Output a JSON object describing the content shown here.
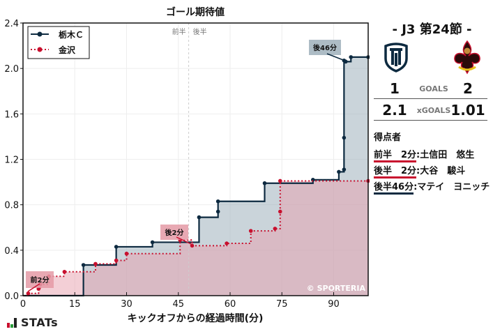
{
  "chart_data": {
    "type": "line",
    "title": "ゴール期待値",
    "xlabel": "キックオフからの経過時間(分)",
    "ylabel": "",
    "xlim": [
      0,
      100
    ],
    "ylim": [
      0,
      2.4
    ],
    "xticks": [
      0,
      15,
      30,
      45,
      60,
      75,
      90
    ],
    "yticks": [
      0.0,
      0.4,
      0.8,
      1.2,
      1.6,
      2.0,
      2.4
    ],
    "grid": true,
    "halftime_marker": {
      "x": 48,
      "labels": [
        "前半",
        "後半"
      ]
    },
    "legend_position": "upper left",
    "series": [
      {
        "name": "栃木Ｃ",
        "color": "#0d2a40",
        "style": "solid",
        "fill": "#9fb0bb",
        "steps": [
          [
            0,
            0
          ],
          [
            17.5,
            0.27
          ],
          [
            27,
            0.43
          ],
          [
            37.5,
            0.47
          ],
          [
            51,
            0.69
          ],
          [
            56.5,
            0.74
          ],
          [
            56.5,
            0.83
          ],
          [
            70,
            0.99
          ],
          [
            84,
            1.02
          ],
          [
            91.5,
            1.09
          ],
          [
            93,
            1.11
          ],
          [
            93,
            1.39
          ],
          [
            93,
            2.07
          ],
          [
            93.5,
            2.06
          ],
          [
            95,
            2.1
          ],
          [
            100,
            2.1
          ]
        ]
      },
      {
        "name": "金沢",
        "color": "#c8102e",
        "style": "dotted",
        "fill": "#e7a0ad",
        "steps": [
          [
            0,
            0
          ],
          [
            1.5,
            0.02
          ],
          [
            4.5,
            0.06
          ],
          [
            5,
            0.1
          ],
          [
            7.5,
            0.17
          ],
          [
            12,
            0.21
          ],
          [
            21,
            0.28
          ],
          [
            27,
            0.31
          ],
          [
            30,
            0.37
          ],
          [
            45.5,
            0.49
          ],
          [
            49,
            0.44
          ],
          [
            59,
            0.46
          ],
          [
            66,
            0.57
          ],
          [
            73,
            0.59
          ],
          [
            74.5,
            0.74
          ],
          [
            74.5,
            1.01
          ],
          [
            100,
            1.01
          ]
        ]
      }
    ],
    "annotations": [
      {
        "text": "前2分",
        "x": 2,
        "y": 0.1,
        "team": "金沢"
      },
      {
        "text": "後2分",
        "x": 47,
        "y": 0.53,
        "team": "金沢"
      },
      {
        "text": "後46分",
        "x": 88,
        "y": 2.16,
        "team": "栃木Ｃ"
      }
    ],
    "watermark": "© SPORTERIA"
  },
  "match": {
    "title": "- J3 第24節 -",
    "home_team": "栃木Ｃ",
    "away_team": "金沢",
    "goals": {
      "home": "1",
      "label": "GOALS",
      "away": "2"
    },
    "xgoals": {
      "home": "2.1",
      "label": "xGOALS",
      "away": "1.01"
    }
  },
  "scorers": {
    "title": "得点者",
    "items": [
      {
        "time": "前半　2分",
        "name": "土信田　悠生",
        "team": "away"
      },
      {
        "time": "後半　2分",
        "name": "大谷　駿斗",
        "team": "away"
      },
      {
        "time": "後半46分",
        "name": "マテイ　ヨニッチ",
        "team": "home"
      }
    ]
  },
  "footer": {
    "brand": "STATs"
  },
  "colors": {
    "home": "#0d2a40",
    "away": "#c8102e"
  }
}
